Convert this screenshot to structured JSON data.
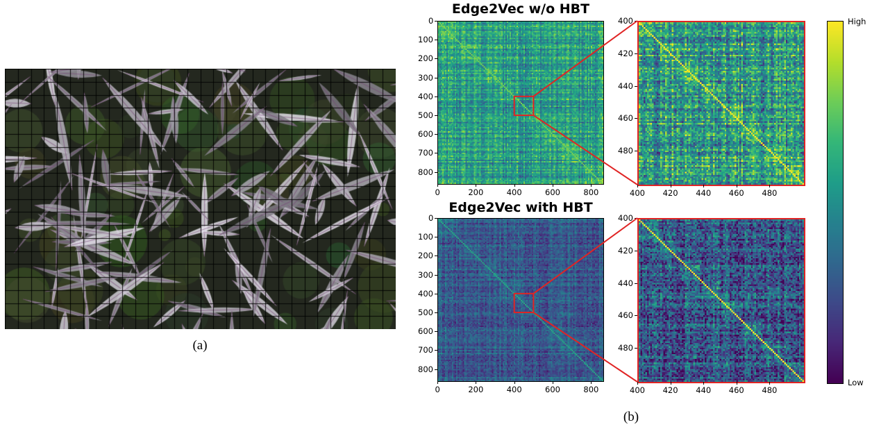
{
  "caption_a": "(a)",
  "caption_b": "(b)",
  "panels": [
    {
      "title": "Edge2Vec w/o HBT",
      "full_ticks_y": [
        "0",
        "100",
        "200",
        "300",
        "400",
        "500",
        "600",
        "700",
        "800"
      ],
      "full_ticks_x": [
        "0",
        "200",
        "400",
        "600",
        "800"
      ],
      "zoom_ticks_y": [
        "400",
        "420",
        "440",
        "460",
        "480"
      ],
      "zoom_ticks_x": [
        "400",
        "420",
        "440",
        "460",
        "480"
      ]
    },
    {
      "title": "Edge2Vec with HBT",
      "full_ticks_y": [
        "0",
        "100",
        "200",
        "300",
        "400",
        "500",
        "600",
        "700",
        "800"
      ],
      "full_ticks_x": [
        "0",
        "200",
        "400",
        "600",
        "800"
      ],
      "zoom_ticks_y": [
        "400",
        "420",
        "440",
        "460",
        "480"
      ],
      "zoom_ticks_x": [
        "400",
        "420",
        "440",
        "460",
        "480"
      ]
    }
  ],
  "colorbar": {
    "high_label": "High",
    "low_label": "Low",
    "colormap": "viridis"
  },
  "matrix": {
    "size": 860,
    "zoom_range": [
      400,
      500
    ]
  },
  "colors": {
    "highlight_box": "#e02424"
  }
}
